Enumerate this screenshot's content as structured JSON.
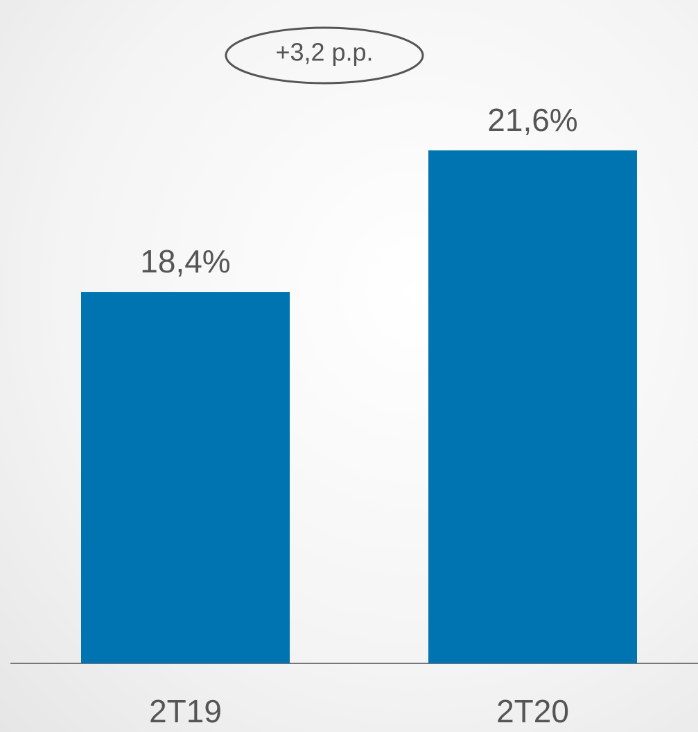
{
  "chart_data": {
    "type": "bar",
    "categories": [
      "2T19",
      "2T20"
    ],
    "values": [
      18.4,
      21.6
    ],
    "value_labels": [
      "18,4%",
      "21,6%"
    ],
    "color": "#0073b1",
    "ylim": [
      10,
      25
    ],
    "annotation": "+3,2 p.p."
  }
}
